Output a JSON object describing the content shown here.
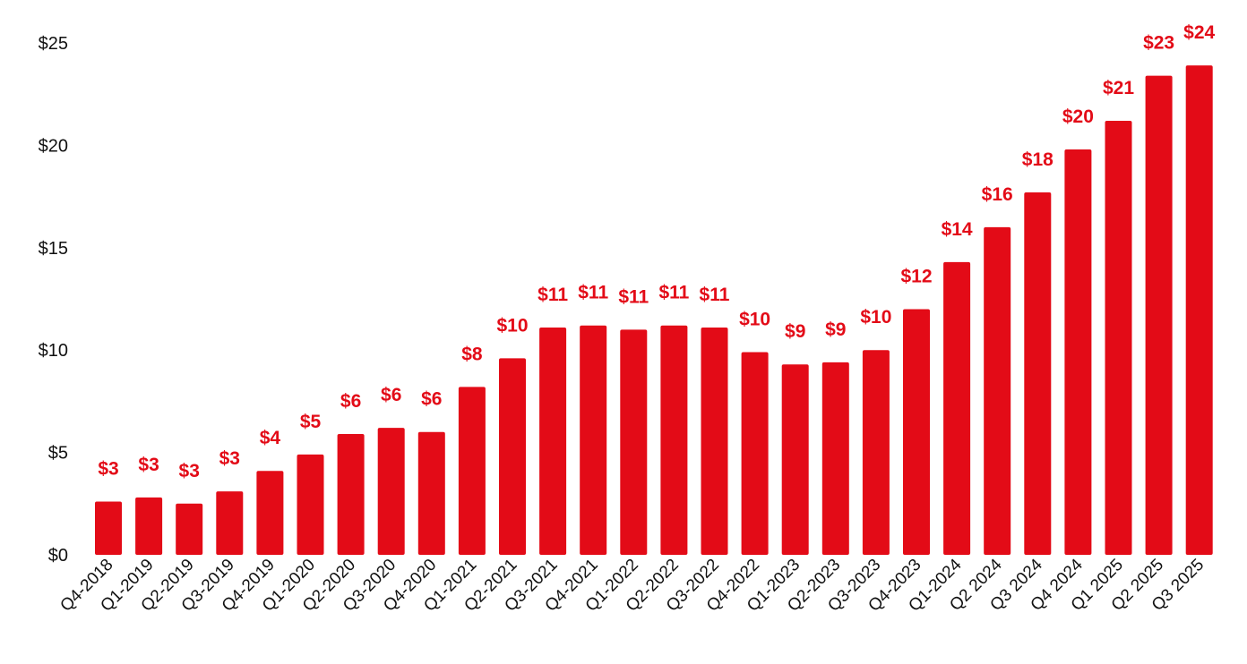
{
  "chart_data": {
    "type": "bar",
    "title": "",
    "xlabel": "",
    "ylabel": "",
    "ylim": [
      0,
      25
    ],
    "yticks": [
      {
        "value": 0,
        "label": "$0"
      },
      {
        "value": 5,
        "label": "$5"
      },
      {
        "value": 10,
        "label": "$10"
      },
      {
        "value": 15,
        "label": "$15"
      },
      {
        "value": 20,
        "label": "$20"
      },
      {
        "value": 25,
        "label": "$25"
      }
    ],
    "grid": false,
    "legend": "none",
    "bar_color": "#e30b17",
    "label_color": "#e30b17",
    "categories": [
      "Q4-2018",
      "Q1-2019",
      "Q2-2019",
      "Q3-2019",
      "Q4-2019",
      "Q1-2020",
      "Q2-2020",
      "Q3-2020",
      "Q4-2020",
      "Q1-2021",
      "Q2-2021",
      "Q3-2021",
      "Q4-2021",
      "Q1-2022",
      "Q2-2022",
      "Q3-2022",
      "Q4-2022",
      "Q1-2023",
      "Q2-2023",
      "Q3-2023",
      "Q4-2023",
      "Q1-2024",
      "Q2 2024",
      "Q3 2024",
      "Q4 2024",
      "Q1 2025",
      "Q2 2025",
      "Q3 2025"
    ],
    "values": [
      2.6,
      2.8,
      2.5,
      3.1,
      4.1,
      4.9,
      5.9,
      6.2,
      6.0,
      8.2,
      9.6,
      11.1,
      11.2,
      11.0,
      11.2,
      11.1,
      9.9,
      9.3,
      9.4,
      10.0,
      12.0,
      14.3,
      16.0,
      17.7,
      19.8,
      21.2,
      23.4,
      23.9
    ],
    "data_labels": [
      "$3",
      "$3",
      "$3",
      "$3",
      "$4",
      "$5",
      "$6",
      "$6",
      "$6",
      "$8",
      "$10",
      "$11",
      "$11",
      "$11",
      "$11",
      "$11",
      "$10",
      "$9",
      "$9",
      "$10",
      "$12",
      "$14",
      "$16",
      "$18",
      "$20",
      "$21",
      "$23",
      "$24"
    ]
  }
}
